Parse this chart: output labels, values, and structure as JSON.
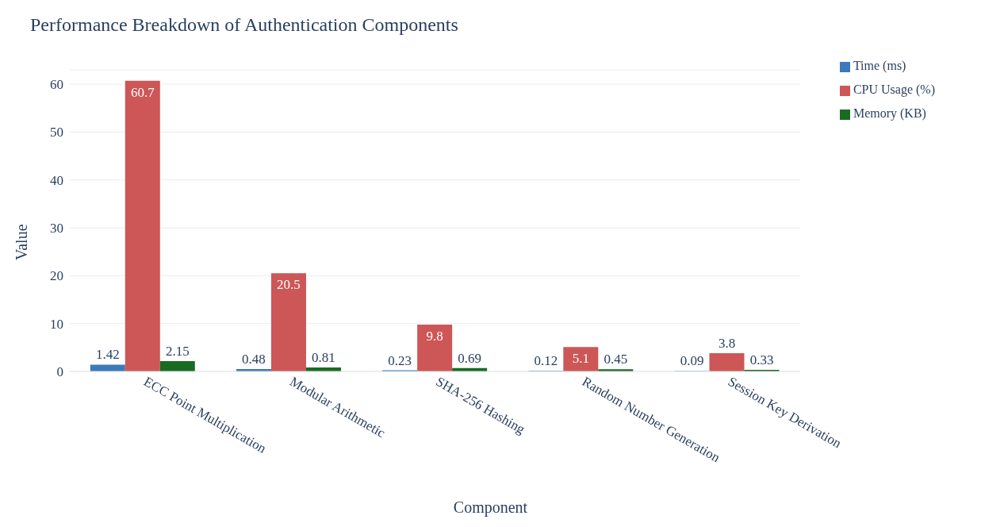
{
  "chart_data": {
    "type": "bar",
    "title": "Performance Breakdown of Authentication Components",
    "xlabel": "Component",
    "ylabel": "Value",
    "categories": [
      "ECC Point Multiplication",
      "Modular Arithmetic",
      "SHA-256 Hashing",
      "Random Number Generation",
      "Session Key Derivation"
    ],
    "series": [
      {
        "name": "Time (ms)",
        "color": "#3d7ab8",
        "values": [
          1.42,
          0.48,
          0.23,
          0.12,
          0.09
        ]
      },
      {
        "name": "CPU Usage (%)",
        "color": "#cd5656",
        "values": [
          60.7,
          20.5,
          9.8,
          5.1,
          3.8
        ]
      },
      {
        "name": "Memory (KB)",
        "color": "#1a6b22",
        "values": [
          2.15,
          0.81,
          0.69,
          0.45,
          0.33
        ]
      }
    ],
    "ylim": [
      0,
      63
    ],
    "yticks": [
      0,
      10,
      20,
      30,
      40,
      50,
      60
    ],
    "grid": "y",
    "legend": "top right",
    "data_labels": true
  }
}
